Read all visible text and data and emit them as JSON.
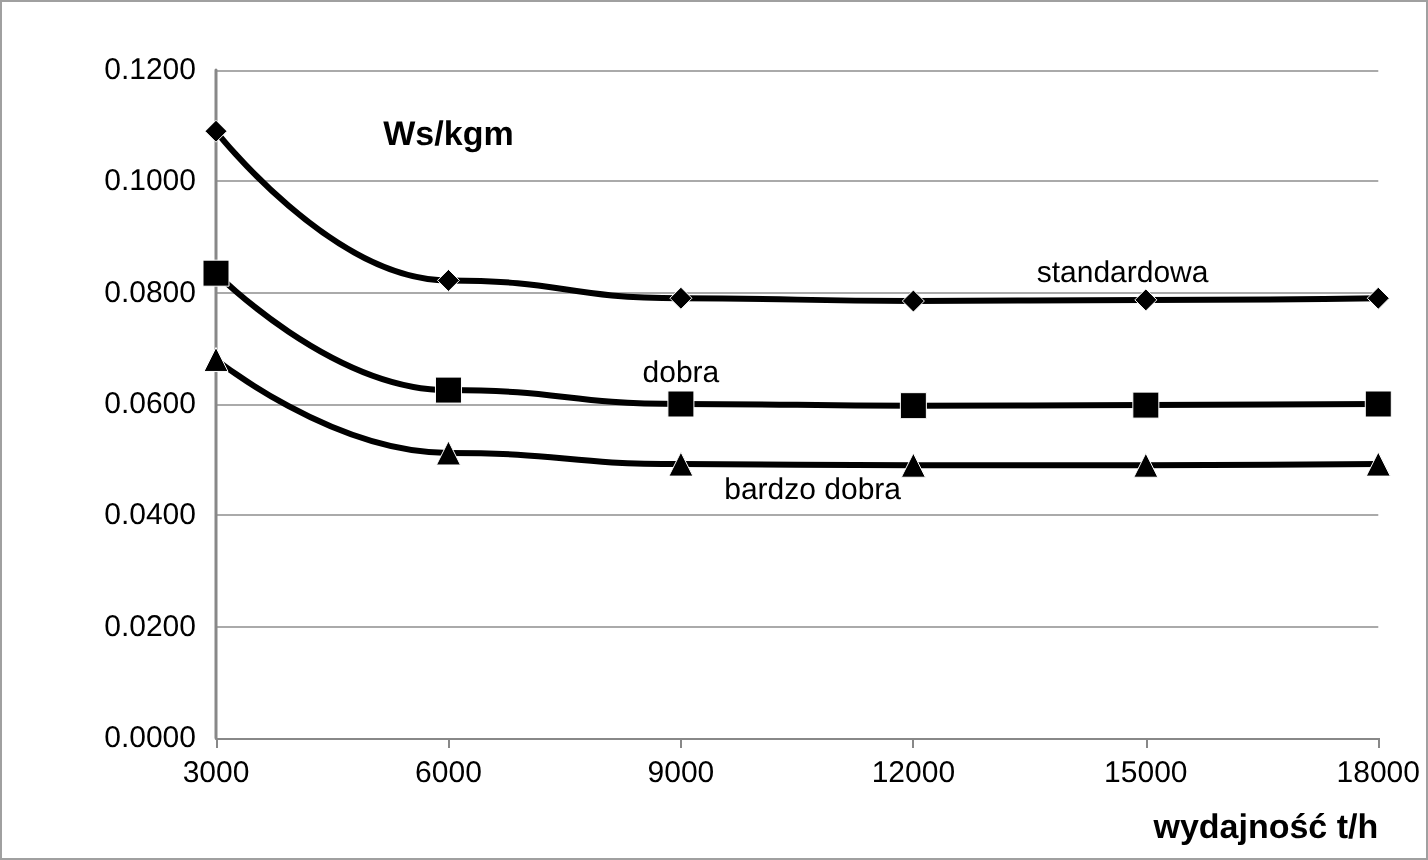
{
  "chart_data": {
    "type": "line",
    "ylabel": "Ws/kgm",
    "xlabel": "wydajność t/h",
    "x": [
      3000,
      6000,
      9000,
      12000,
      15000,
      18000
    ],
    "series": [
      {
        "name": "standardowa",
        "color": "#000000",
        "marker": "diamond",
        "values": [
          0.109,
          0.0822,
          0.079,
          0.0785,
          0.0787,
          0.079
        ]
      },
      {
        "name": "dobra",
        "color": "#000000",
        "marker": "square",
        "values": [
          0.0835,
          0.0625,
          0.06,
          0.0597,
          0.0598,
          0.06
        ]
      },
      {
        "name": "bardzo dobra",
        "color": "#000000",
        "marker": "triangle",
        "values": [
          0.068,
          0.0512,
          0.0492,
          0.049,
          0.049,
          0.0492
        ]
      }
    ],
    "xlim": [
      3000,
      18000
    ],
    "xticks": [
      3000,
      6000,
      9000,
      12000,
      15000,
      18000
    ],
    "ylim": [
      0,
      0.12
    ],
    "yticks": [
      {
        "value": 0,
        "label": "0.0000"
      },
      {
        "value": 0.02,
        "label": "0.0200"
      },
      {
        "value": 0.04,
        "label": "0.0400"
      },
      {
        "value": 0.06,
        "label": "0.0600"
      },
      {
        "value": 0.08,
        "label": "0.0800"
      },
      {
        "value": 0.1,
        "label": "0.1000"
      },
      {
        "value": 0.12,
        "label": "0.1200"
      }
    ],
    "grid": "y",
    "legend": false,
    "line_style": "solid"
  }
}
